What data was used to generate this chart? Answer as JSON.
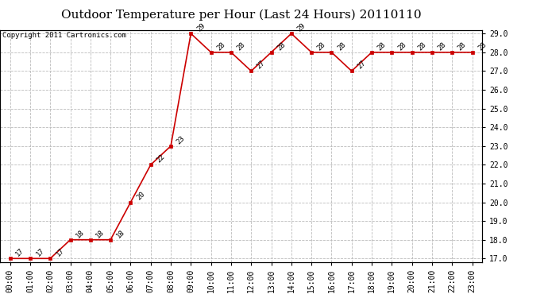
{
  "title": "Outdoor Temperature per Hour (Last 24 Hours) 20110110",
  "copyright": "Copyright 2011 Cartronics.com",
  "hours": [
    "00:00",
    "01:00",
    "02:00",
    "03:00",
    "04:00",
    "05:00",
    "06:00",
    "07:00",
    "08:00",
    "09:00",
    "10:00",
    "11:00",
    "12:00",
    "13:00",
    "14:00",
    "15:00",
    "16:00",
    "17:00",
    "18:00",
    "19:00",
    "20:00",
    "21:00",
    "22:00",
    "23:00"
  ],
  "temps": [
    17,
    17,
    17,
    18,
    18,
    18,
    20,
    22,
    23,
    29,
    28,
    28,
    27,
    28,
    29,
    28,
    28,
    27,
    28,
    28,
    28,
    28,
    28,
    28
  ],
  "line_color": "#cc0000",
  "marker_color": "#cc0000",
  "bg_color": "#ffffff",
  "grid_color": "#bbbbbb",
  "ylim_min": 17.0,
  "ylim_max": 29.0,
  "ytick_step": 1.0,
  "title_fontsize": 11,
  "label_fontsize": 6.5,
  "tick_fontsize": 7,
  "copyright_fontsize": 6.5
}
